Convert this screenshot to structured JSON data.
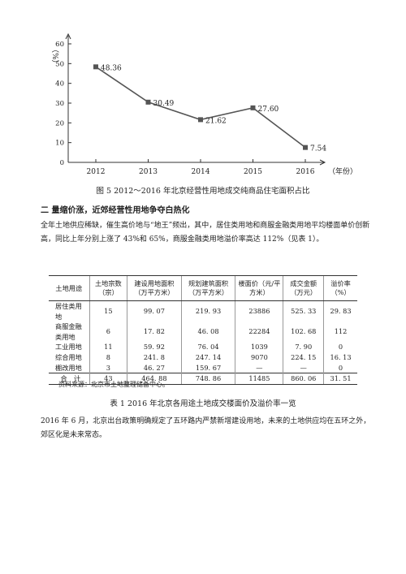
{
  "chart_data": {
    "type": "line",
    "categories": [
      "2012",
      "2013",
      "2014",
      "2015",
      "2016"
    ],
    "values": [
      48.36,
      30.49,
      21.62,
      27.6,
      7.54
    ],
    "value_labels": [
      "48.36",
      "30.49",
      "21.62",
      "27.60",
      "7.54"
    ],
    "y_unit": "%",
    "x_unit": "年份",
    "ylim": [
      0,
      60
    ],
    "y_ticks": [
      "0",
      "10",
      "20",
      "30",
      "40",
      "50",
      "60"
    ],
    "grid": false
  },
  "figure_caption": "图 5  2012～2016 年北京经营性用地成交纯商品住宅面积占比",
  "section_heading": "二  量缩价涨，近郊经营性用地争夺白热化",
  "paragraph1": "全年土地供应稀缺，催生高价地与“地王”频出，其中，居住类用地和商服金融类用地平均楼面单价创新高，同比上年分别上涨了 43%和 65%，商服金融类用地溢价率高达 112%（见表 1）。",
  "table": {
    "headers": [
      "土地用途",
      "土地宗数（宗）",
      "建设用地面积（万平方米）",
      "规划建筑面积（万平方米）",
      "楼面价（元/平方米）",
      "成交金额（万元）",
      "溢价率（%）"
    ],
    "rows": [
      [
        "居住类用地",
        "15",
        "99. 07",
        "219. 93",
        "23886",
        "525. 33",
        "29. 83"
      ],
      [
        "商服金融类用地",
        "6",
        "17. 82",
        "46. 08",
        "22284",
        "102. 68",
        "112"
      ],
      [
        "工业用地",
        "11",
        "59. 92",
        "76. 04",
        "1039",
        "7. 90",
        "0"
      ],
      [
        "综合用地",
        "8",
        "241. 8",
        "247. 14",
        "9070",
        "224. 15",
        "16. 13"
      ],
      [
        "棚改用地",
        "3",
        "46. 27",
        "159. 67",
        "—",
        "—",
        "0"
      ]
    ],
    "total": [
      "合　计",
      "43",
      "464. 88",
      "748. 86",
      "11485",
      "860. 06",
      "31. 51"
    ]
  },
  "source_note": "资料来源：北京市土地整理储备中心。",
  "table_caption": "表 1  2016 年北京各用途土地成交楼面价及溢价率一览",
  "paragraph2": "2016 年 6 月，北京出台政策明确规定了五环路内严禁新增建设用地，未来的土地供应均在五环之外，郊区化是未来常态。",
  "colors": {
    "line": "#555555",
    "marker": "#555555",
    "text": "#222222"
  }
}
